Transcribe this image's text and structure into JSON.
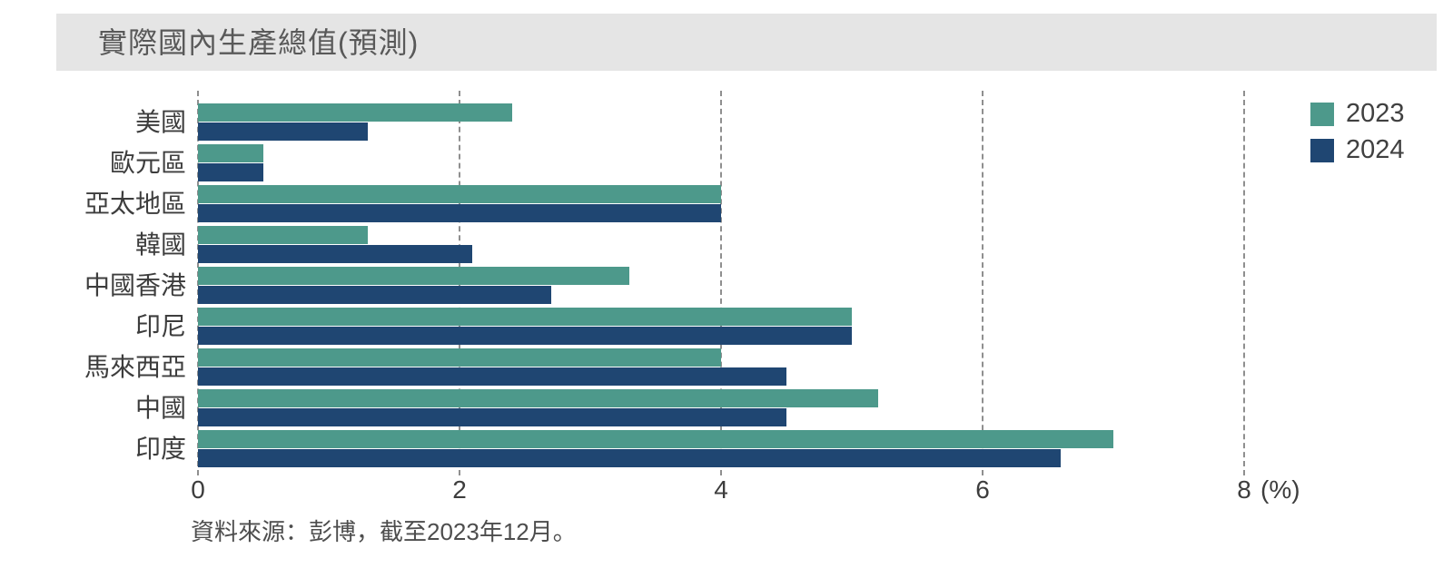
{
  "title": "實際國內生產總值(預測)",
  "source_note": "資料來源：彭博，截至2023年12月。",
  "legend": {
    "items": [
      {
        "label": "2023",
        "color": "#4d998b"
      },
      {
        "label": "2024",
        "color": "#1f4672"
      }
    ]
  },
  "axis": {
    "unit_label": "(%)"
  },
  "chart_data": {
    "type": "bar",
    "orientation": "horizontal",
    "title": "實際國內生產總值(預測)",
    "categories": [
      "美國",
      "歐元區",
      "亞太地區",
      "韓國",
      "中國香港",
      "印尼",
      "馬來西亞",
      "中國",
      "印度"
    ],
    "series": [
      {
        "name": "2023",
        "color": "#4d998b",
        "values": [
          2.4,
          0.5,
          4.0,
          1.3,
          3.3,
          5.0,
          4.0,
          5.2,
          7.0
        ]
      },
      {
        "name": "2024",
        "color": "#1f4672",
        "values": [
          1.3,
          0.5,
          4.0,
          2.1,
          2.7,
          5.0,
          4.5,
          4.5,
          6.6
        ]
      }
    ],
    "xticks": [
      0,
      2,
      4,
      6,
      8
    ],
    "xlim": [
      0,
      8
    ],
    "xlabel": "(%)",
    "grid": "vertical-dashed",
    "legend_position": "top-right",
    "source": "資料來源：彭博，截至2023年12月。"
  }
}
